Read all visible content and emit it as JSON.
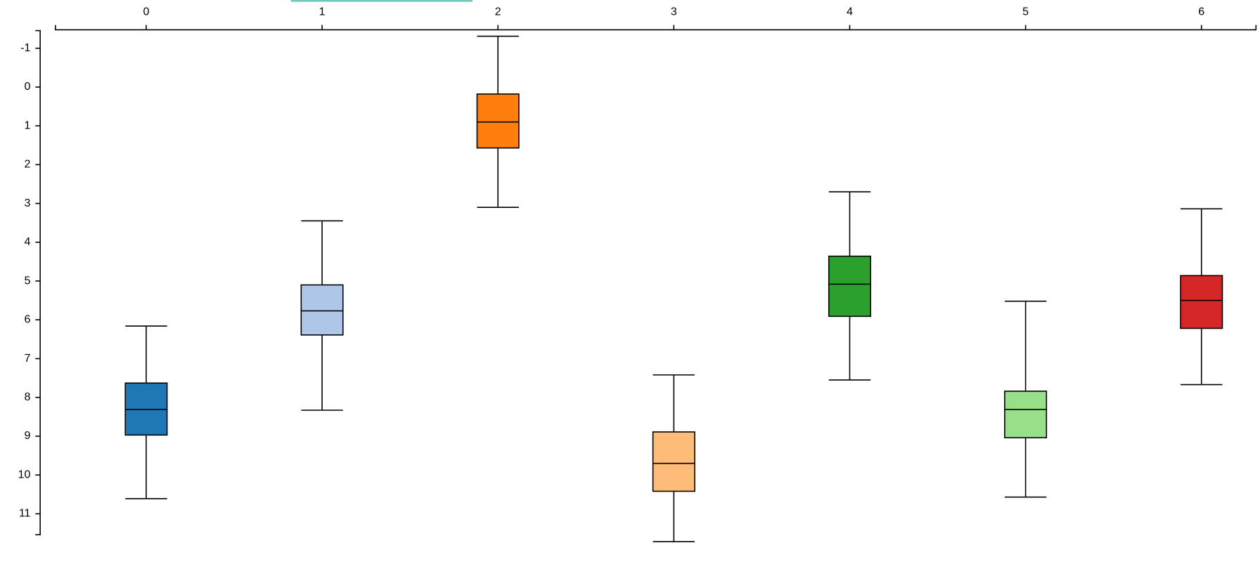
{
  "chart_data": {
    "type": "box",
    "xlim": [
      -0.516,
      6.31
    ],
    "xticks": [
      0,
      1,
      2,
      3,
      4,
      5,
      6
    ],
    "ylim": [
      -1.455,
      11.54
    ],
    "yticks": [
      -1,
      0,
      1,
      2,
      3,
      4,
      5,
      6,
      7,
      8,
      9,
      10,
      11
    ],
    "y_inverted": true,
    "boxes": [
      {
        "x": 0,
        "color": "#1f77b4",
        "min": 6.16,
        "q1": 7.63,
        "median": 8.31,
        "q3": 8.97,
        "max": 10.61
      },
      {
        "x": 1,
        "color": "#aec7e8",
        "min": 3.45,
        "q1": 5.1,
        "median": 5.77,
        "q3": 6.39,
        "max": 8.33
      },
      {
        "x": 2,
        "color": "#ff7f0e",
        "min": -1.31,
        "q1": 0.18,
        "median": 0.9,
        "q3": 1.57,
        "max": 3.1
      },
      {
        "x": 3,
        "color": "#ffbb78",
        "min": 7.42,
        "q1": 8.89,
        "median": 9.7,
        "q3": 10.42,
        "max": 11.72
      },
      {
        "x": 4,
        "color": "#2ca02c",
        "min": 2.7,
        "q1": 4.36,
        "median": 5.08,
        "q3": 5.91,
        "max": 7.55
      },
      {
        "x": 5,
        "color": "#98df8a",
        "min": 5.52,
        "q1": 7.84,
        "median": 8.31,
        "q3": 9.04,
        "max": 10.57
      },
      {
        "x": 6,
        "color": "#d62728",
        "min": 3.14,
        "q1": 4.86,
        "median": 5.5,
        "q3": 6.22,
        "max": 7.67
      }
    ]
  }
}
